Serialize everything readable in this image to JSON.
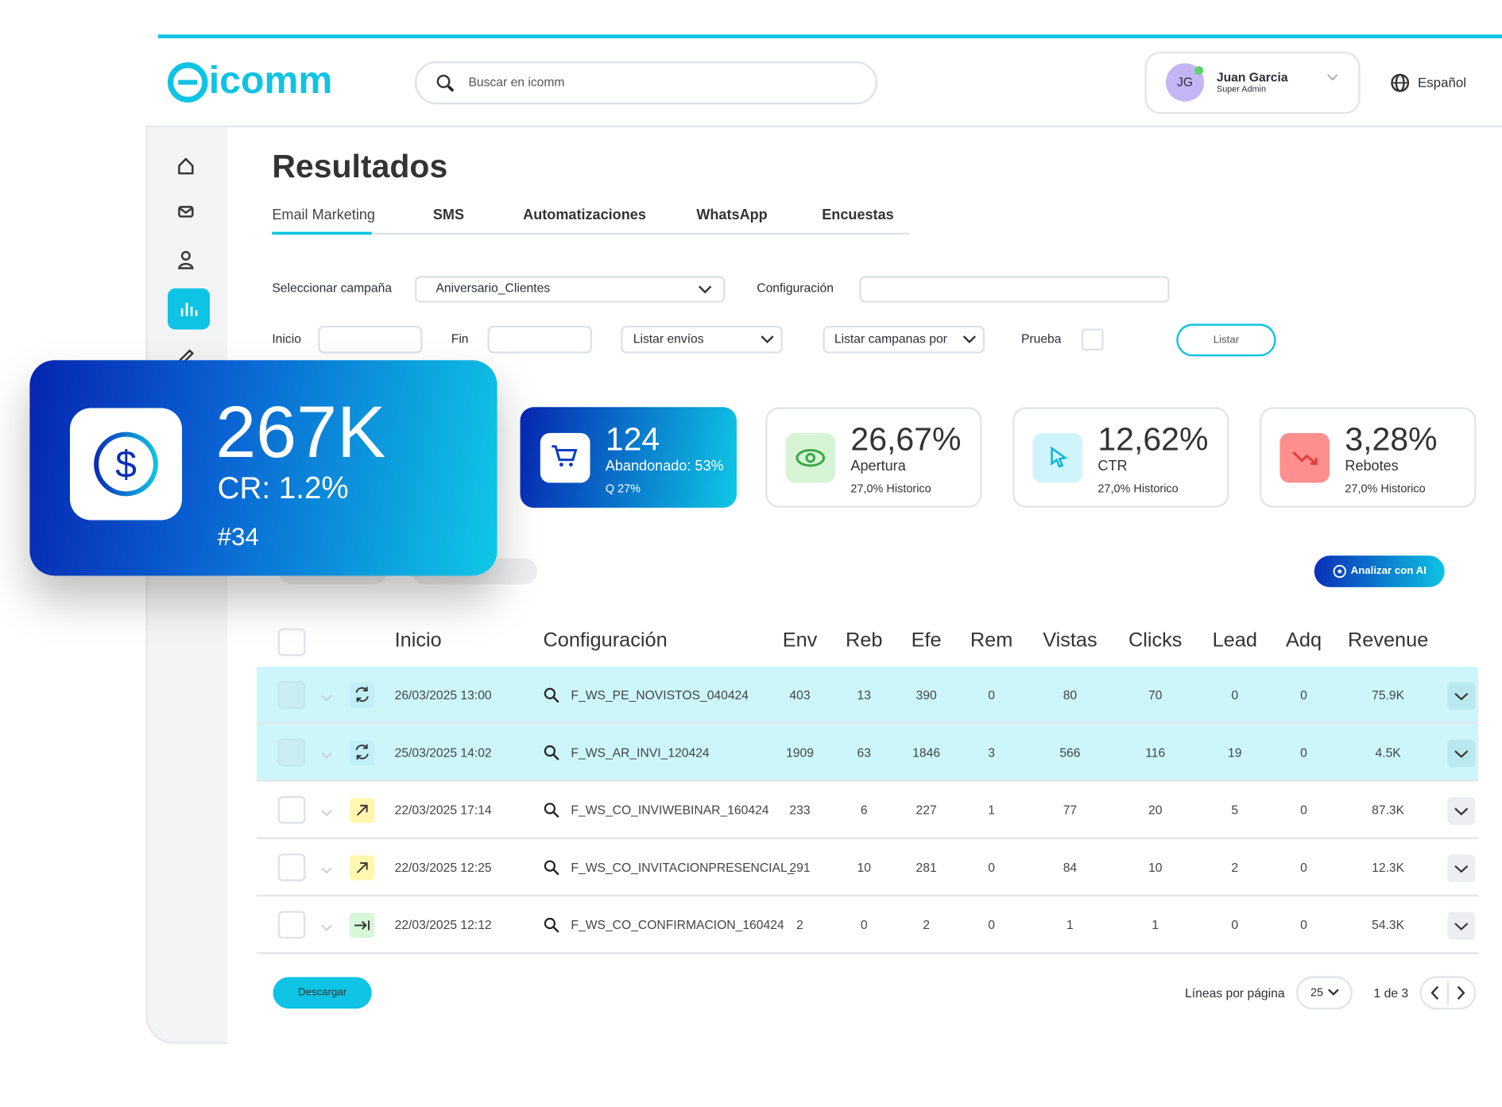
{
  "header": {
    "logo": "icomm",
    "search_placeholder": "Buscar en icomm",
    "user": {
      "initials": "JG",
      "name": "Juan Garcia",
      "role": "Super Admin"
    },
    "language": "Español"
  },
  "title": "Resultados",
  "tabs": [
    "Email Marketing",
    "SMS",
    "Automatizaciones",
    "WhatsApp",
    "Encuestas"
  ],
  "filters": {
    "campaign_label": "Seleccionar campaña",
    "campaign_value": "Aniversario_Clientes",
    "config_label": "Configuración",
    "start_label": "Inicio",
    "end_label": "Fin",
    "list_sends": "Listar envíos",
    "list_campaigns": "Listar campanas por",
    "test_label": "Prueba",
    "list_button": "Listar"
  },
  "highlight": {
    "value": "267K",
    "cr": "CR: 1.2%",
    "rank": "#34"
  },
  "stats": [
    {
      "value": "124",
      "label": "Abandonado: 53%",
      "sub": "Q 27%"
    },
    {
      "value": "26,67%",
      "label": "Apertura",
      "sub": "27,0% Historico"
    },
    {
      "value": "12,62%",
      "label": "CTR",
      "sub": "27,0% Historico"
    },
    {
      "value": "3,28%",
      "label": "Rebotes",
      "sub": "27,0% Historico"
    }
  ],
  "ai_button": "Analizar con AI",
  "table": {
    "columns": [
      "Inicio",
      "Configuración",
      "Env",
      "Reb",
      "Efe",
      "Rem",
      "Vistas",
      "Clicks",
      "Lead",
      "Adq",
      "Revenue"
    ],
    "rows": [
      [
        "26/03/2025 13:00",
        "F_WS_PE_NOVISTOS_040424",
        403,
        13,
        390,
        0,
        80,
        70,
        0,
        0,
        "75.9K"
      ],
      [
        "25/03/2025 14:02",
        "F_WS_AR_INVI_120424",
        1909,
        63,
        1846,
        3,
        566,
        116,
        19,
        0,
        "4.5K"
      ],
      [
        "22/03/2025 17:14",
        "F_WS_CO_INVIWEBINAR_160424",
        233,
        6,
        227,
        1,
        77,
        20,
        5,
        0,
        "87.3K"
      ],
      [
        "22/03/2025 12:25",
        "F_WS_CO_INVITACIONPRESENCIAL_",
        291,
        10,
        281,
        0,
        84,
        10,
        2,
        0,
        "12.3K"
      ],
      [
        "22/03/2025 12:12",
        "F_WS_CO_CONFIRMACION_160424",
        2,
        0,
        2,
        0,
        1,
        1,
        0,
        0,
        "54.3K"
      ]
    ]
  },
  "footer": {
    "download": "Descargar",
    "rows_per_page_label": "Líneas por página",
    "rows_per_page": "25",
    "page": "1 de 3"
  }
}
